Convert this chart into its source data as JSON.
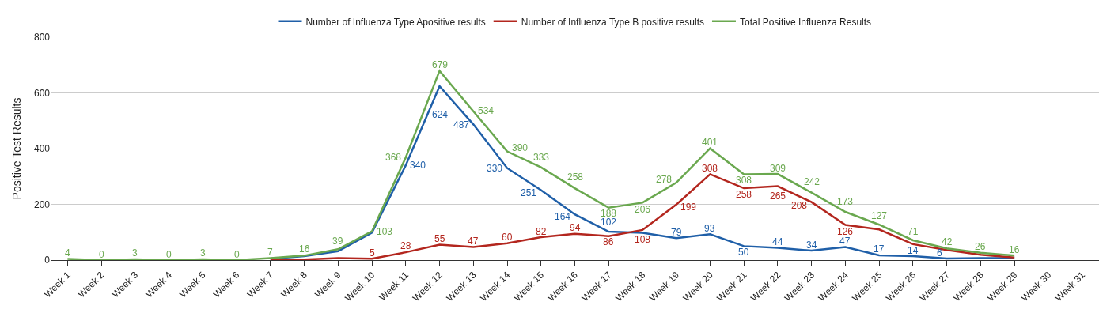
{
  "chart_data": {
    "type": "line",
    "ylabel": "Positive Test Results",
    "categories": [
      "Week 1",
      "Week 2",
      "Week 3",
      "Week 4",
      "Week 5",
      "Week 6",
      "Week 7",
      "Week 8",
      "Week 9",
      "Week 10",
      "Week 11",
      "Week 12",
      "Week 13",
      "Week 14",
      "Week 15",
      "Week 16",
      "Week 17",
      "Week 18",
      "Week 19",
      "Week 20",
      "Week 21",
      "Week 22",
      "Week 23",
      "Week 24",
      "Week 25",
      "Week 26",
      "Week 27",
      "Week 28",
      "Week 29",
      "Week 30",
      "Week 31"
    ],
    "series": [
      {
        "name": "Number of Influenza Type Apositive results",
        "color": "#1f5fa8",
        "values": [
          null,
          null,
          null,
          null,
          null,
          null,
          5,
          14,
          32,
          98,
          340,
          624,
          487,
          330,
          251,
          164,
          102,
          98,
          79,
          93,
          50,
          44,
          34,
          47,
          17,
          14,
          6,
          7,
          7,
          null,
          null
        ],
        "value_labels": [
          null,
          null,
          null,
          null,
          null,
          null,
          null,
          null,
          null,
          null,
          "340",
          "624",
          "487",
          "330",
          "251",
          "164",
          "102",
          null,
          "79",
          "93",
          "50",
          "44",
          "34",
          "47",
          "17",
          "14",
          "6",
          null,
          null,
          null,
          null
        ]
      },
      {
        "name": "Number of Influenza Type B positive results",
        "color": "#b3261e",
        "values": [
          null,
          null,
          null,
          null,
          null,
          null,
          2,
          2,
          7,
          5,
          28,
          55,
          47,
          60,
          82,
          94,
          86,
          108,
          199,
          308,
          258,
          265,
          208,
          126,
          110,
          57,
          36,
          19,
          9,
          null,
          null
        ],
        "value_labels": [
          null,
          null,
          null,
          null,
          null,
          null,
          null,
          null,
          null,
          "5",
          "28",
          "55",
          "47",
          "60",
          "82",
          "94",
          "86",
          "108",
          "199",
          "308",
          "258",
          "265",
          "208",
          "126",
          null,
          null,
          null,
          null,
          null,
          null,
          null
        ]
      },
      {
        "name": "Total Positive Influenza Results",
        "color": "#6aa84f",
        "values": [
          4,
          0,
          3,
          0,
          3,
          0,
          7,
          16,
          39,
          103,
          368,
          679,
          534,
          390,
          333,
          258,
          188,
          206,
          278,
          401,
          308,
          309,
          242,
          173,
          127,
          71,
          42,
          26,
          16,
          null,
          null
        ],
        "value_labels": [
          "4",
          "0",
          "3",
          "0",
          "3",
          "0",
          "7",
          "16",
          "39",
          "103",
          "368",
          "679",
          "534",
          "390",
          "333",
          "258",
          "188",
          "206",
          "278",
          "401",
          "308",
          "309",
          "242",
          "173",
          "127",
          "71",
          "42",
          "26",
          "16",
          null,
          null
        ]
      }
    ],
    "ylim": [
      0,
      800
    ],
    "yticks": [
      0,
      200,
      400,
      600,
      800
    ],
    "grid": "y",
    "legend": "top",
    "marker": "none",
    "line_style": "solid"
  }
}
